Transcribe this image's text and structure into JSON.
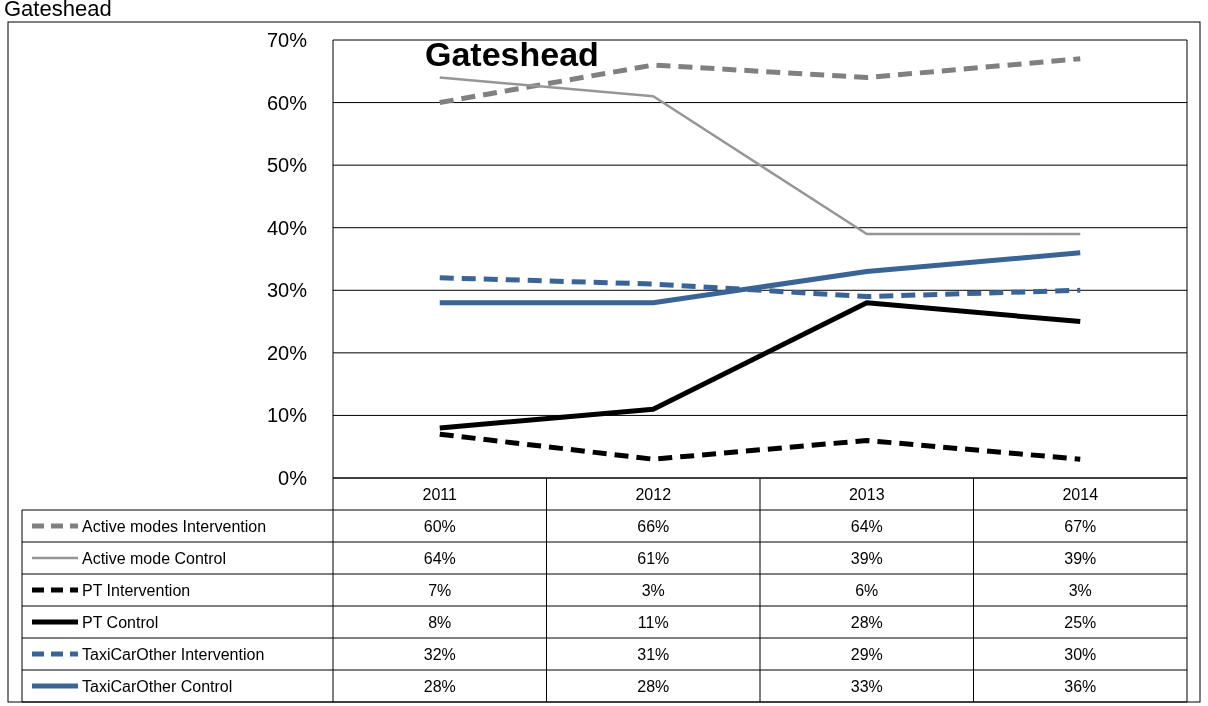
{
  "chart_data": {
    "type": "line",
    "title": "Gateshead",
    "subtitle": "Gateshead",
    "categories": [
      "2011",
      "2012",
      "2013",
      "2014"
    ],
    "ylim": [
      0,
      70
    ],
    "yticks": [
      {
        "value": 0,
        "label": "0%"
      },
      {
        "value": 10,
        "label": "10%"
      },
      {
        "value": 20,
        "label": "20%"
      },
      {
        "value": 30,
        "label": "30%"
      },
      {
        "value": 40,
        "label": "40%"
      },
      {
        "value": 50,
        "label": "50%"
      },
      {
        "value": 60,
        "label": "60%"
      },
      {
        "value": 70,
        "label": "70%"
      }
    ],
    "grid": "y",
    "legend": "bottom",
    "marker": "none",
    "series": [
      {
        "name": "Active modes Intervention",
        "color": "#808080",
        "line_style": "dashed",
        "values": [
          60,
          66,
          64,
          67
        ],
        "value_labels": [
          "60%",
          "66%",
          "64%",
          "67%"
        ]
      },
      {
        "name": "Active mode Control",
        "color": "#969696",
        "line_style": "solid",
        "values": [
          64,
          61,
          39,
          39
        ],
        "value_labels": [
          "64%",
          "61%",
          "39%",
          "39%"
        ]
      },
      {
        "name": "PT Intervention",
        "color": "#000000",
        "line_style": "dashed",
        "values": [
          7,
          3,
          6,
          3
        ],
        "value_labels": [
          "7%",
          "3%",
          "6%",
          "3%"
        ]
      },
      {
        "name": "PT Control",
        "color": "#000000",
        "line_style": "solid",
        "values": [
          8,
          11,
          28,
          25
        ],
        "value_labels": [
          "8%",
          "11%",
          "28%",
          "25%"
        ]
      },
      {
        "name": "TaxiCarOther Intervention",
        "color": "#3a6496",
        "line_style": "dashed",
        "values": [
          32,
          31,
          29,
          30
        ],
        "value_labels": [
          "32%",
          "31%",
          "29%",
          "30%"
        ]
      },
      {
        "name": "TaxiCarOther Control",
        "color": "#3a6496",
        "line_style": "solid",
        "values": [
          28,
          28,
          33,
          36
        ],
        "value_labels": [
          "28%",
          "28%",
          "33%",
          "36%"
        ]
      }
    ]
  }
}
